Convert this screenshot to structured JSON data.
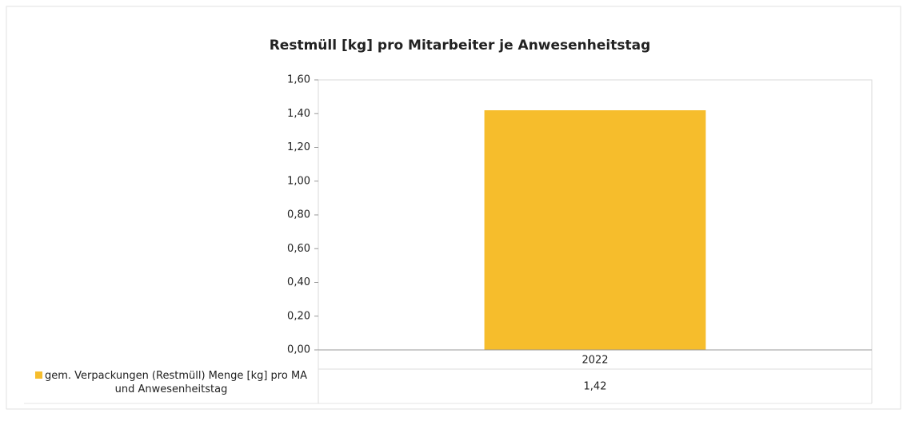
{
  "chart_data": {
    "type": "bar",
    "title": "Restmüll [kg] pro Mitarbeiter je Anwesenheitstag",
    "categories": [
      "2022"
    ],
    "series": [
      {
        "name": "gem. Verpackungen (Restmüll) Menge [kg] pro MA und Anwesenheitstag",
        "color": "#f6bd2c",
        "values": [
          1.42
        ],
        "value_labels": [
          "1,42"
        ]
      }
    ],
    "ylim": [
      0,
      1.6
    ],
    "yticks": [
      {
        "value": 0,
        "label": "0,00"
      },
      {
        "value": 0.2,
        "label": "0,20"
      },
      {
        "value": 0.4,
        "label": "0,40"
      },
      {
        "value": 0.6,
        "label": "0,60"
      },
      {
        "value": 0.8,
        "label": "0,80"
      },
      {
        "value": 1.0,
        "label": "1,00"
      },
      {
        "value": 1.2,
        "label": "1,20"
      },
      {
        "value": 1.4,
        "label": "1,40"
      },
      {
        "value": 1.6,
        "label": "1,60"
      }
    ],
    "grid": false
  }
}
